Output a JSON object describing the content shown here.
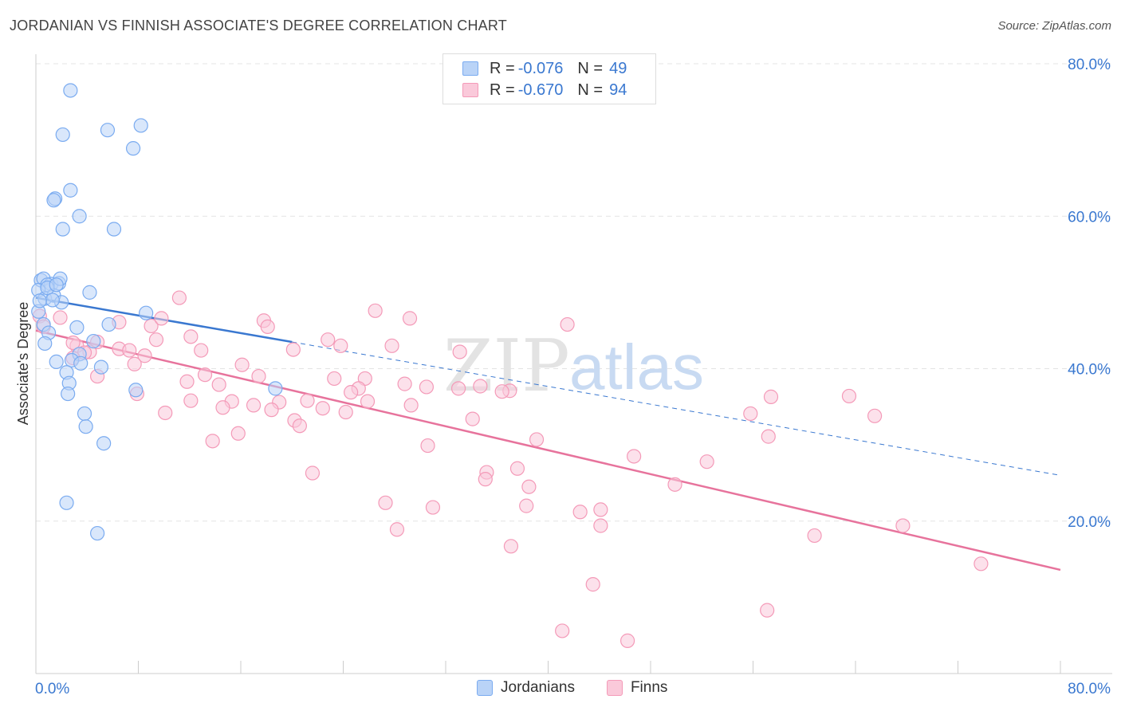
{
  "title": "JORDANIAN VS FINNISH ASSOCIATE'S DEGREE CORRELATION CHART",
  "source": "Source: ZipAtlas.com",
  "watermark": {
    "zip": "ZIP",
    "atlas": "atlas"
  },
  "colors": {
    "jordanians": "#7aabf0",
    "jordanians_fill": "#b9d3f7",
    "jordanians_line": "#3a78d0",
    "finns": "#f49ab8",
    "finns_fill": "#fac9da",
    "finns_line": "#e7739c",
    "value_text": "#3a78d0",
    "grid": "#e4e4e4"
  },
  "legend": {
    "rows": [
      {
        "r_label": "R =",
        "r_value": "-0.076",
        "n_label": "N =",
        "n_value": "49"
      },
      {
        "r_label": "R =",
        "r_value": "-0.670",
        "n_label": "N =",
        "n_value": "94"
      }
    ]
  },
  "bottom_legend": {
    "jordanians": "Jordanians",
    "finns": "Finns"
  },
  "chart_data": {
    "type": "scatter",
    "title": "JORDANIAN VS FINNISH ASSOCIATE'S DEGREE CORRELATION CHART",
    "xlabel": "",
    "ylabel": "Associate's Degree",
    "xlim": [
      0,
      80
    ],
    "ylim": [
      0,
      80
    ],
    "x_tick_labels": [
      "0.0%",
      "80.0%"
    ],
    "y_tick_labels": [
      "20.0%",
      "40.0%",
      "60.0%",
      "80.0%"
    ],
    "y_ticks": [
      20,
      40,
      60,
      80
    ],
    "grid": true,
    "series": [
      {
        "name": "Jordanians",
        "r": -0.076,
        "n": 49,
        "trend": {
          "x0": 0,
          "y0": 49.3,
          "x1": 20,
          "y1": 43.5,
          "dashed_to_x": 80,
          "dashed_to_y": 26.0
        },
        "points": [
          [
            2.7,
            76.5
          ],
          [
            2.1,
            70.7
          ],
          [
            5.6,
            71.3
          ],
          [
            8.2,
            71.9
          ],
          [
            7.6,
            68.9
          ],
          [
            2.7,
            63.4
          ],
          [
            1.5,
            62.3
          ],
          [
            1.4,
            62.1
          ],
          [
            3.4,
            60.0
          ],
          [
            2.1,
            58.3
          ],
          [
            6.1,
            58.3
          ],
          [
            0.4,
            51.6
          ],
          [
            0.6,
            51.8
          ],
          [
            1.2,
            51.1
          ],
          [
            1.8,
            51.2
          ],
          [
            1.9,
            51.8
          ],
          [
            0.9,
            51.0
          ],
          [
            0.2,
            50.3
          ],
          [
            4.2,
            50.0
          ],
          [
            0.7,
            49.2
          ],
          [
            1.4,
            49.6
          ],
          [
            2.0,
            48.7
          ],
          [
            0.2,
            47.5
          ],
          [
            8.6,
            47.3
          ],
          [
            0.6,
            45.8
          ],
          [
            3.2,
            45.4
          ],
          [
            5.7,
            45.8
          ],
          [
            1.0,
            44.7
          ],
          [
            0.7,
            43.3
          ],
          [
            4.5,
            43.6
          ],
          [
            3.4,
            41.9
          ],
          [
            2.8,
            41.1
          ],
          [
            1.6,
            40.9
          ],
          [
            3.5,
            40.7
          ],
          [
            5.1,
            40.2
          ],
          [
            2.4,
            39.5
          ],
          [
            2.6,
            38.1
          ],
          [
            7.8,
            37.2
          ],
          [
            18.7,
            37.4
          ],
          [
            2.5,
            36.7
          ],
          [
            3.8,
            34.1
          ],
          [
            3.9,
            32.4
          ],
          [
            5.3,
            30.2
          ],
          [
            2.4,
            22.4
          ],
          [
            4.8,
            18.4
          ],
          [
            0.9,
            50.6
          ],
          [
            1.3,
            49.0
          ],
          [
            0.3,
            48.9
          ],
          [
            1.6,
            51.0
          ]
        ]
      },
      {
        "name": "Finns",
        "r": -0.67,
        "n": 94,
        "trend": {
          "x0": 0,
          "y0": 45.0,
          "x1": 80,
          "y1": 13.6
        },
        "points": [
          [
            0.3,
            46.9
          ],
          [
            1.9,
            46.7
          ],
          [
            0.6,
            45.5
          ],
          [
            11.2,
            49.3
          ],
          [
            6.5,
            46.1
          ],
          [
            9.0,
            45.6
          ],
          [
            9.8,
            46.6
          ],
          [
            17.8,
            46.3
          ],
          [
            18.1,
            45.5
          ],
          [
            26.5,
            47.6
          ],
          [
            29.2,
            46.6
          ],
          [
            41.5,
            45.8
          ],
          [
            12.1,
            44.2
          ],
          [
            9.4,
            43.8
          ],
          [
            4.8,
            43.5
          ],
          [
            3.2,
            43.0
          ],
          [
            6.5,
            42.6
          ],
          [
            7.3,
            42.4
          ],
          [
            4.2,
            42.2
          ],
          [
            3.8,
            42.1
          ],
          [
            8.5,
            41.7
          ],
          [
            2.9,
            41.4
          ],
          [
            12.9,
            42.4
          ],
          [
            7.7,
            40.6
          ],
          [
            16.1,
            40.5
          ],
          [
            20.1,
            42.5
          ],
          [
            22.8,
            43.8
          ],
          [
            23.8,
            43.0
          ],
          [
            27.8,
            43.0
          ],
          [
            33.1,
            42.2
          ],
          [
            4.8,
            39.0
          ],
          [
            13.2,
            39.2
          ],
          [
            17.4,
            39.0
          ],
          [
            23.3,
            38.7
          ],
          [
            25.7,
            38.7
          ],
          [
            11.8,
            38.3
          ],
          [
            14.3,
            37.9
          ],
          [
            28.8,
            38.0
          ],
          [
            25.2,
            37.4
          ],
          [
            24.6,
            36.9
          ],
          [
            30.5,
            37.6
          ],
          [
            33.0,
            37.4
          ],
          [
            34.7,
            37.7
          ],
          [
            37.0,
            37.1
          ],
          [
            36.4,
            37.0
          ],
          [
            7.9,
            36.7
          ],
          [
            12.1,
            35.8
          ],
          [
            15.3,
            35.7
          ],
          [
            19.0,
            35.6
          ],
          [
            21.2,
            35.8
          ],
          [
            25.9,
            35.7
          ],
          [
            17.0,
            35.2
          ],
          [
            18.4,
            34.6
          ],
          [
            14.6,
            34.9
          ],
          [
            22.4,
            34.8
          ],
          [
            29.3,
            35.2
          ],
          [
            10.1,
            34.2
          ],
          [
            24.2,
            34.3
          ],
          [
            20.2,
            33.2
          ],
          [
            20.6,
            32.5
          ],
          [
            34.1,
            33.4
          ],
          [
            57.4,
            36.3
          ],
          [
            63.5,
            36.4
          ],
          [
            55.8,
            34.1
          ],
          [
            65.5,
            33.8
          ],
          [
            15.8,
            31.5
          ],
          [
            13.8,
            30.5
          ],
          [
            30.6,
            29.9
          ],
          [
            39.1,
            30.7
          ],
          [
            57.2,
            31.1
          ],
          [
            46.7,
            28.5
          ],
          [
            52.4,
            27.8
          ],
          [
            21.6,
            26.3
          ],
          [
            35.2,
            26.4
          ],
          [
            37.6,
            26.9
          ],
          [
            35.1,
            25.5
          ],
          [
            38.5,
            24.5
          ],
          [
            49.9,
            24.8
          ],
          [
            27.3,
            22.4
          ],
          [
            31.0,
            21.8
          ],
          [
            38.3,
            22.0
          ],
          [
            42.5,
            21.2
          ],
          [
            44.1,
            21.5
          ],
          [
            28.2,
            18.9
          ],
          [
            44.1,
            19.4
          ],
          [
            60.8,
            18.1
          ],
          [
            67.7,
            19.4
          ],
          [
            37.1,
            16.7
          ],
          [
            73.8,
            14.4
          ],
          [
            43.5,
            11.7
          ],
          [
            57.1,
            8.3
          ],
          [
            41.1,
            5.6
          ],
          [
            46.2,
            4.3
          ],
          [
            2.9,
            43.4
          ]
        ]
      }
    ]
  }
}
